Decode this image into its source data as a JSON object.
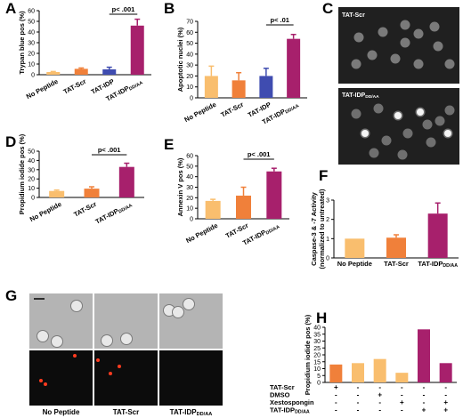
{
  "colors": {
    "no_peptide": "#f9be6e",
    "tat_scr": "#f0803a",
    "tat_idp": "#3f4cb0",
    "tat_idpdd": "#a7206c",
    "cell_bg": "#202020",
    "brightfield_bg": "#b4b4b4"
  },
  "chart_data": [
    {
      "panel": "A",
      "type": "bar",
      "ylabel": "Trypan blue pos (%)",
      "ylim": [
        0,
        60
      ],
      "yticks": [
        0,
        10,
        20,
        30,
        40,
        50,
        60
      ],
      "categories": [
        "No Peptide",
        "TAT-Scr",
        "TAT-IDP",
        "TAT-IDPDD/AA"
      ],
      "values": [
        2.5,
        5.5,
        5,
        46
      ],
      "errors": [
        0.5,
        0.8,
        2,
        6
      ],
      "annotation": "p< .001",
      "annotation_bars": [
        2,
        3
      ]
    },
    {
      "panel": "B",
      "type": "bar",
      "ylabel": "Apoptotic nuclei (%)",
      "ylim": [
        0,
        70
      ],
      "yticks": [
        0,
        10,
        20,
        30,
        40,
        50,
        60,
        70
      ],
      "categories": [
        "No Peptide",
        "TAT-Scr",
        "TAT-IDP",
        "TAT-IDPDD/AA"
      ],
      "values": [
        20,
        16,
        20,
        54
      ],
      "errors": [
        9,
        7,
        7,
        4
      ],
      "annotation": "p< .01",
      "annotation_bars": [
        2,
        3
      ]
    },
    {
      "panel": "D",
      "type": "bar",
      "ylabel": "Propidium iodide pos (%)",
      "ylim": [
        0,
        50
      ],
      "yticks": [
        0,
        10,
        20,
        30,
        40,
        50
      ],
      "categories": [
        "No Peptide",
        "TAT-Scr",
        "TAT-IDPDD/AA"
      ],
      "values": [
        7,
        9.5,
        33
      ],
      "errors": [
        1,
        2,
        4
      ],
      "annotation": "p< .001",
      "annotation_bars": [
        1,
        2
      ]
    },
    {
      "panel": "E",
      "type": "bar",
      "ylabel": "Annexin V pos (%)",
      "ylim": [
        0,
        60
      ],
      "yticks": [
        0,
        10,
        20,
        30,
        40,
        50,
        60
      ],
      "categories": [
        "No Peptide",
        "TAT-Scr",
        "TAT-IDPDD/AA"
      ],
      "values": [
        17,
        22,
        45
      ],
      "errors": [
        1.5,
        8,
        3
      ],
      "annotation": "p< .001",
      "annotation_bars": [
        1,
        2
      ]
    },
    {
      "panel": "F",
      "type": "bar",
      "ylabel": "Caspase-3 & -7 Activity (normalized to untreated)",
      "ylim": [
        0,
        3
      ],
      "yticks": [
        0,
        1,
        2,
        3
      ],
      "categories": [
        "No Peptide",
        "TAT-Scr",
        "TAT-IDPDD/AA"
      ],
      "values": [
        1.0,
        1.05,
        2.3
      ],
      "errors": [
        0,
        0.15,
        0.55
      ]
    },
    {
      "panel": "H",
      "type": "bar",
      "ylabel": "Propidium iodide pos (%)",
      "ylim": [
        0,
        40
      ],
      "yticks": [
        0,
        5,
        10,
        15,
        20,
        25,
        30,
        35,
        40
      ],
      "values": [
        13,
        14,
        17,
        7,
        38.5,
        14
      ],
      "bar_colors": [
        "tat_scr",
        "no_peptide",
        "no_peptide",
        "no_peptide",
        "tat_idpdd",
        "tat_idpdd"
      ],
      "conditions": [
        {
          "label": "TAT-Scr",
          "signs": [
            "+",
            "-",
            "-",
            "-",
            "-",
            "-"
          ]
        },
        {
          "label": "DMSO",
          "signs": [
            "-",
            "-",
            "+",
            "-",
            "-",
            "-"
          ]
        },
        {
          "label": "Xestospongin",
          "signs": [
            "-",
            "-",
            "-",
            "+",
            "-",
            "+"
          ]
        },
        {
          "label": "TAT-IDPDD/AA",
          "signs": [
            "-",
            "-",
            "-",
            "-",
            "+",
            "+"
          ]
        }
      ]
    }
  ],
  "panels": {
    "C": {
      "letter": "C",
      "top_label": "TAT-Scr",
      "bottom_label": "TAT-IDPDD/AA"
    },
    "G": {
      "letter": "G",
      "columns": [
        "No Peptide",
        "TAT-Scr",
        "TAT-IDPDD/AA"
      ]
    }
  }
}
